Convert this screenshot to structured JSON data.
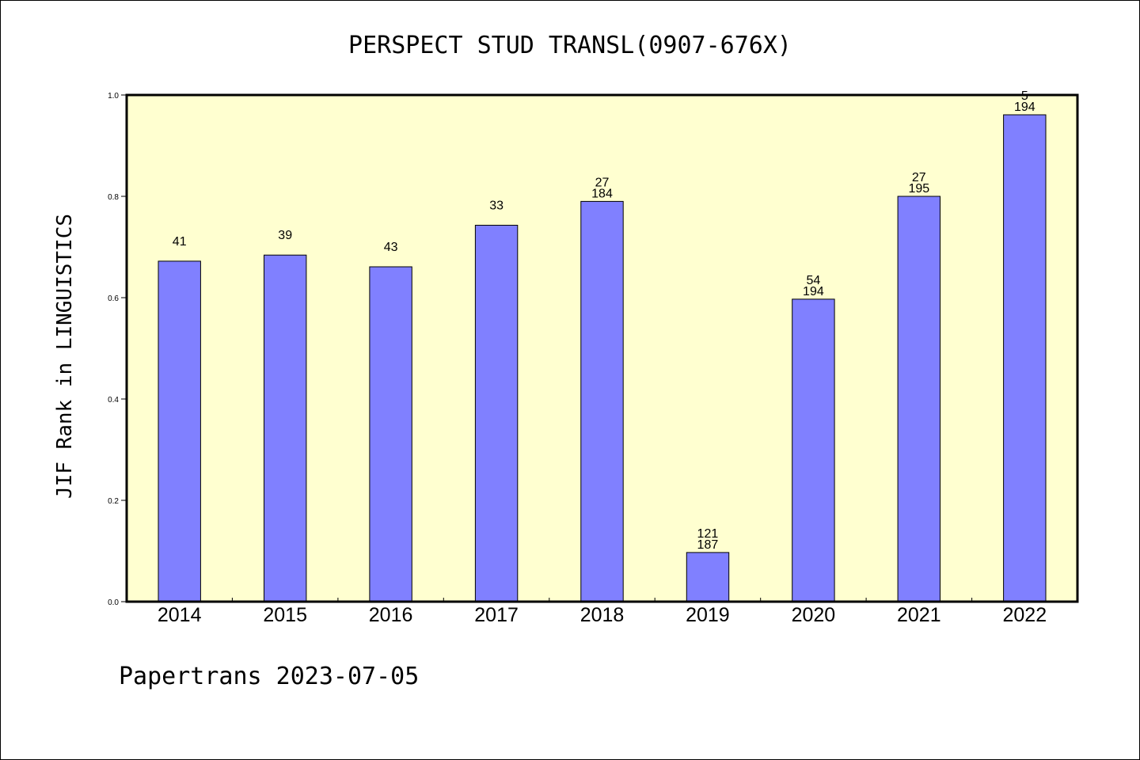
{
  "chart_data": {
    "type": "bar",
    "title": "PERSPECT STUD TRANSL(0907-676X)",
    "ylabel": "JIF Rank in LINGUISTICS",
    "xlabel": "",
    "footer": "Papertrans 2023-07-05",
    "ylim": [
      0,
      1.0
    ],
    "yticks": [
      "0.0",
      "0.2",
      "0.4",
      "0.6",
      "0.8",
      "1.0"
    ],
    "grid": false,
    "categories": [
      "2014",
      "2015",
      "2016",
      "2017",
      "2018",
      "2019",
      "2020",
      "2021",
      "2022"
    ],
    "values": [
      0.672,
      0.684,
      0.661,
      0.743,
      0.79,
      0.097,
      0.597,
      0.8,
      0.961
    ],
    "labels": [
      [
        "41"
      ],
      [
        "39"
      ],
      [
        "43"
      ],
      [
        "33"
      ],
      [
        "27",
        "184"
      ],
      [
        "121",
        "187"
      ],
      [
        "54",
        "194"
      ],
      [
        "27",
        "195"
      ],
      [
        "5",
        "194"
      ]
    ],
    "colors": {
      "plot_background": "#ffffd0",
      "bar_fill": "#8080ff",
      "bar_stroke": "#000000"
    }
  }
}
